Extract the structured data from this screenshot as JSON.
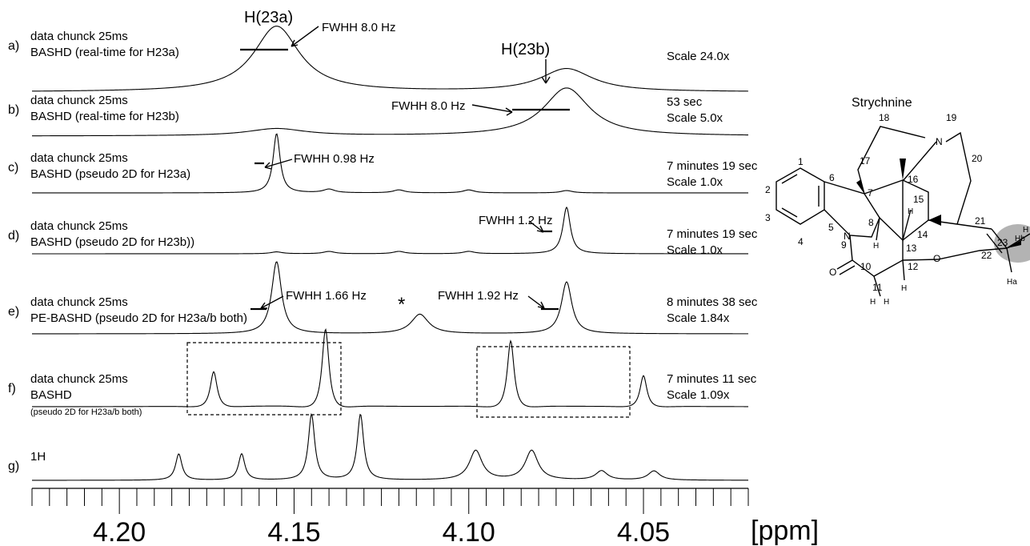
{
  "chart_data": {
    "type": "line",
    "xlabel": "[ppm]",
    "x_ticks": [
      "4.20",
      "4.15",
      "4.10",
      "4.05"
    ],
    "x_tick_values": [
      4.2,
      4.15,
      4.1,
      4.05
    ],
    "xlim": [
      4.225,
      4.02
    ],
    "x_reversed": true,
    "grid": false,
    "series": [
      {
        "label": "a)",
        "lines": [
          "data chunck 25ms",
          "BASHD (real-time for H23a)"
        ],
        "right_text": [
          "Scale 24.0x"
        ],
        "baseline": 0.0,
        "height": 1.0,
        "peaks": [
          [
            4.155,
            1.0,
            0.008
          ],
          [
            4.072,
            0.35,
            0.009
          ]
        ]
      },
      {
        "label": "b)",
        "lines": [
          "data chunck 25ms",
          "BASHD (real-time for H23b)"
        ],
        "right_text": [
          "53 sec",
          "Scale 5.0x"
        ],
        "baseline": 0.0,
        "height": 1.0,
        "peaks": [
          [
            4.072,
            1.0,
            0.008
          ],
          [
            4.155,
            0.15,
            0.01
          ]
        ]
      },
      {
        "label": "c)",
        "lines": [
          "data chunck 25ms",
          "BASHD (pseudo 2D for H23a)"
        ],
        "right_text": [
          "7 minutes 19 sec",
          "Scale 1.0x"
        ],
        "baseline": 0.0,
        "height": 1.0,
        "peaks": [
          [
            4.155,
            1.0,
            0.0012
          ],
          [
            4.14,
            0.06,
            0.002
          ],
          [
            4.12,
            0.05,
            0.002
          ],
          [
            4.1,
            0.05,
            0.002
          ],
          [
            4.072,
            0.04,
            0.002
          ]
        ]
      },
      {
        "label": "d)",
        "lines": [
          "data chunck 25ms",
          "BASHD (pseudo 2D for H23b))"
        ],
        "right_text": [
          "7 minutes 19 sec",
          "Scale 1.0x"
        ],
        "baseline": 0.0,
        "height": 1.0,
        "peaks": [
          [
            4.072,
            1.0,
            0.0013
          ],
          [
            4.155,
            0.04,
            0.002
          ],
          [
            4.14,
            0.05,
            0.002
          ],
          [
            4.12,
            0.05,
            0.002
          ],
          [
            4.1,
            0.05,
            0.002
          ]
        ]
      },
      {
        "label": "e)",
        "lines": [
          "data chunck 25ms",
          "PE-BASHD (pseudo 2D for H23a/b both)"
        ],
        "right_text": [
          "8 minutes 38 sec",
          "Scale 1.84x"
        ],
        "baseline": 0.0,
        "height": 1.0,
        "peaks": [
          [
            4.155,
            1.0,
            0.0017
          ],
          [
            4.072,
            0.72,
            0.0018
          ],
          [
            4.114,
            0.27,
            0.003
          ]
        ]
      },
      {
        "label": "f)",
        "lines": [
          "data chunck 25ms",
          "BASHD",
          "(pseudo 2D for H23a/b both)"
        ],
        "right_text": [
          "7 minutes 11 sec",
          "Scale 1.09x"
        ],
        "baseline": 0.0,
        "height": 1.0,
        "peaks": [
          [
            4.173,
            0.45,
            0.0012
          ],
          [
            4.141,
            1.0,
            0.0012
          ],
          [
            4.088,
            0.85,
            0.0012
          ],
          [
            4.05,
            0.4,
            0.0012
          ]
        ]
      },
      {
        "label": "g)",
        "lines": [
          "1H"
        ],
        "right_text": [],
        "baseline": 0.0,
        "height": 1.0,
        "peaks": [
          [
            4.183,
            0.4,
            0.0011
          ],
          [
            4.165,
            0.4,
            0.0011
          ],
          [
            4.145,
            1.0,
            0.0011
          ],
          [
            4.131,
            1.0,
            0.0011
          ],
          [
            4.098,
            0.45,
            0.0022
          ],
          [
            4.082,
            0.45,
            0.0022
          ],
          [
            4.062,
            0.14,
            0.002
          ],
          [
            4.047,
            0.14,
            0.002
          ]
        ]
      }
    ],
    "annotations": {
      "h23a": "H(23a)",
      "h23b": "H(23b)",
      "fwhh_a": "FWHH 8.0 Hz",
      "fwhh_b": "FWHH 8.0 Hz",
      "fwhh_c": "FWHH 0.98 Hz",
      "fwhh_d": "FWHH 1.2 Hz",
      "fwhh_e1": "FWHH 1.66 Hz",
      "fwhh_e2": "FWHH 1.92 Hz",
      "star": "*"
    }
  },
  "structure": {
    "name": "Strychnine",
    "atoms": [
      "1",
      "2",
      "3",
      "4",
      "5",
      "6",
      "7",
      "8",
      "9",
      "10",
      "11",
      "12",
      "13",
      "14",
      "15",
      "16",
      "17",
      "18",
      "19",
      "20",
      "21",
      "22",
      "23"
    ],
    "N_label": "N",
    "O_label": "O",
    "H_label": "H",
    "Ha_label": "Ha",
    "Hb_label": "Hb",
    "highlight_color": "#b3b3b3"
  }
}
